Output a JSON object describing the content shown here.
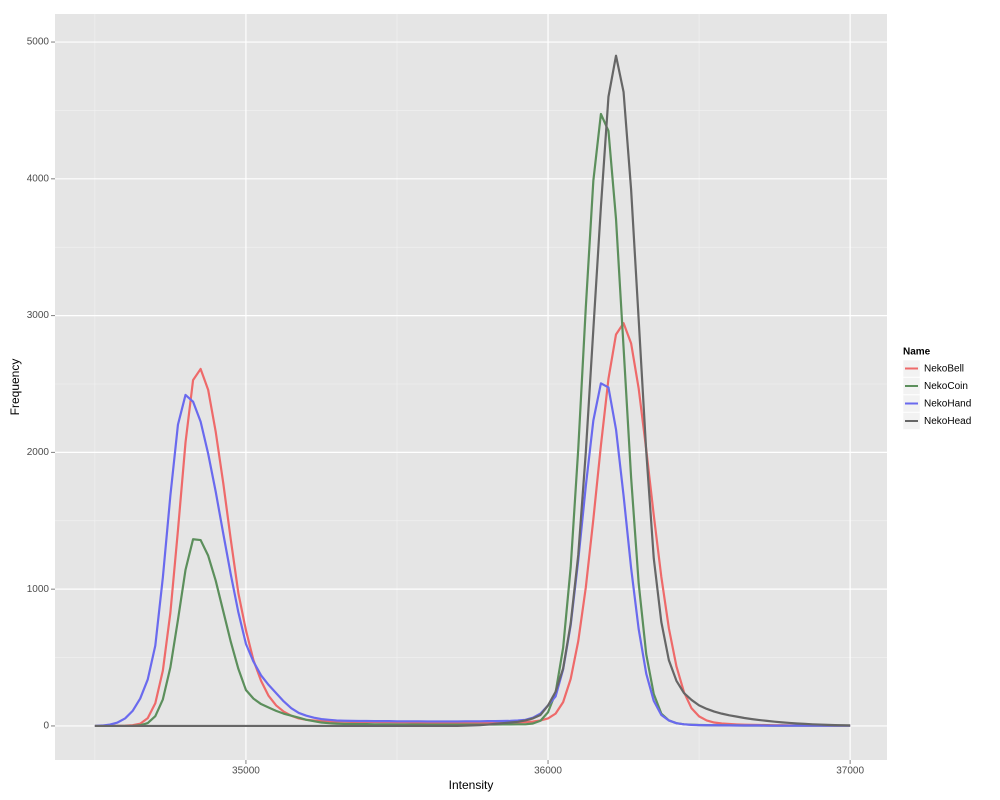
{
  "chart_data": {
    "type": "line",
    "x_label": "Intensity",
    "y_label": "Frequency",
    "legend_title": "Name",
    "legend_position": "right",
    "grid": true,
    "xlim": [
      34368,
      37122
    ],
    "ylim": [
      -249,
      5205
    ],
    "xticks": [
      35000,
      36000,
      37000
    ],
    "yticks": [
      0,
      1000,
      2000,
      3000,
      4000,
      5000
    ],
    "x": [
      34500,
      34525,
      34550,
      34575,
      34600,
      34625,
      34650,
      34675,
      34700,
      34725,
      34750,
      34775,
      34800,
      34825,
      34850,
      34875,
      34900,
      34925,
      34950,
      34975,
      35000,
      35025,
      35050,
      35075,
      35100,
      35125,
      35150,
      35175,
      35200,
      35225,
      35250,
      35275,
      35300,
      35325,
      35350,
      35375,
      35400,
      35425,
      35450,
      35475,
      35500,
      35525,
      35550,
      35575,
      35600,
      35625,
      35650,
      35675,
      35700,
      35725,
      35750,
      35775,
      35800,
      35825,
      35850,
      35875,
      35900,
      35925,
      35950,
      35975,
      36000,
      36025,
      36050,
      36075,
      36100,
      36125,
      36150,
      36175,
      36200,
      36225,
      36250,
      36275,
      36300,
      36325,
      36350,
      36375,
      36400,
      36425,
      36450,
      36475,
      36500,
      36525,
      36550,
      36575,
      36600,
      36625,
      36650,
      36675,
      36700,
      36725,
      36750,
      36775,
      36800,
      36825,
      36850,
      36875,
      36900,
      36925,
      36950,
      36975,
      37000
    ],
    "series": [
      {
        "name": "NekoBell",
        "color": "#ee6a6a",
        "values": [
          0,
          0,
          0,
          1,
          2,
          5,
          16,
          57,
          166,
          404,
          829,
          1431,
          2072,
          2528,
          2610,
          2457,
          2150,
          1775,
          1360,
          970,
          700,
          480,
          330,
          220,
          150,
          105,
          75,
          55,
          45,
          40,
          35,
          33,
          32,
          31,
          30,
          30,
          29,
          29,
          28,
          28,
          27,
          27,
          26,
          26,
          25,
          25,
          25,
          24,
          24,
          24,
          23,
          23,
          23,
          24,
          24,
          25,
          26,
          28,
          32,
          40,
          55,
          90,
          174,
          344,
          620,
          1012,
          1511,
          2050,
          2538,
          2862,
          2945,
          2797,
          2467,
          2022,
          1540,
          1090,
          714,
          436,
          247,
          129,
          70,
          40,
          25,
          18,
          14,
          11,
          9,
          8,
          7,
          6,
          5,
          5,
          4,
          4,
          3,
          3,
          3,
          2,
          2,
          2,
          2
        ]
      },
      {
        "name": "NekoCoin",
        "color": "#5c8f5c",
        "values": [
          0,
          0,
          0,
          0,
          0,
          0,
          5,
          21,
          71,
          194,
          429,
          776,
          1141,
          1365,
          1359,
          1245,
          1062,
          838,
          614,
          417,
          263,
          200,
          160,
          135,
          110,
          90,
          75,
          60,
          45,
          35,
          25,
          20,
          17,
          15,
          14,
          13,
          13,
          12,
          12,
          12,
          11,
          11,
          11,
          11,
          10,
          10,
          10,
          10,
          10,
          10,
          10,
          10,
          10,
          10,
          11,
          11,
          12,
          12,
          18,
          38,
          100,
          243,
          572,
          1161,
          2025,
          3060,
          3987,
          4474,
          4350,
          3707,
          2767,
          1815,
          1043,
          525,
          233,
          90,
          40,
          20,
          12,
          9,
          7,
          6,
          5,
          5,
          4,
          4,
          3,
          3,
          3,
          3,
          2,
          2,
          2,
          2,
          2,
          2,
          2,
          2,
          2,
          2,
          2
        ]
      },
      {
        "name": "NekoHand",
        "color": "#6a6aee",
        "values": [
          0,
          3,
          10,
          25,
          55,
          110,
          200,
          340,
          587,
          1085,
          1686,
          2203,
          2420,
          2371,
          2225,
          1990,
          1712,
          1406,
          1106,
          830,
          600,
          470,
          370,
          300,
          240,
          180,
          130,
          95,
          75,
          60,
          50,
          45,
          40,
          38,
          37,
          36,
          36,
          35,
          35,
          35,
          34,
          34,
          34,
          34,
          33,
          33,
          33,
          33,
          33,
          34,
          34,
          34,
          35,
          35,
          36,
          37,
          40,
          45,
          60,
          90,
          150,
          216,
          414,
          737,
          1212,
          1753,
          2233,
          2505,
          2475,
          2168,
          1685,
          1154,
          708,
          383,
          183,
          80,
          40,
          20,
          12,
          8,
          6,
          5,
          5,
          4,
          4,
          3,
          3,
          3,
          3,
          2,
          2,
          2,
          2,
          2,
          2,
          2,
          2,
          2,
          2,
          2,
          2
        ]
      },
      {
        "name": "NekoHead",
        "color": "#666666",
        "values": [
          0,
          0,
          0,
          0,
          0,
          0,
          0,
          0,
          0,
          0,
          0,
          0,
          0,
          0,
          0,
          0,
          0,
          0,
          0,
          0,
          0,
          0,
          0,
          0,
          0,
          0,
          0,
          0,
          0,
          0,
          0,
          0,
          0,
          0,
          0,
          0,
          0,
          0,
          0,
          0,
          0,
          0,
          0,
          0,
          0,
          0,
          0,
          0,
          0,
          2,
          4,
          6,
          10,
          15,
          20,
          25,
          30,
          40,
          55,
          80,
          150,
          250,
          420,
          750,
          1250,
          2000,
          2900,
          3795,
          4600,
          4900,
          4635,
          3920,
          2972,
          2010,
          1225,
          760,
          480,
          330,
          240,
          190,
          150,
          125,
          105,
          90,
          78,
          68,
          58,
          50,
          43,
          37,
          31,
          26,
          22,
          18,
          15,
          12,
          10,
          8,
          6,
          5,
          4
        ]
      }
    ]
  }
}
